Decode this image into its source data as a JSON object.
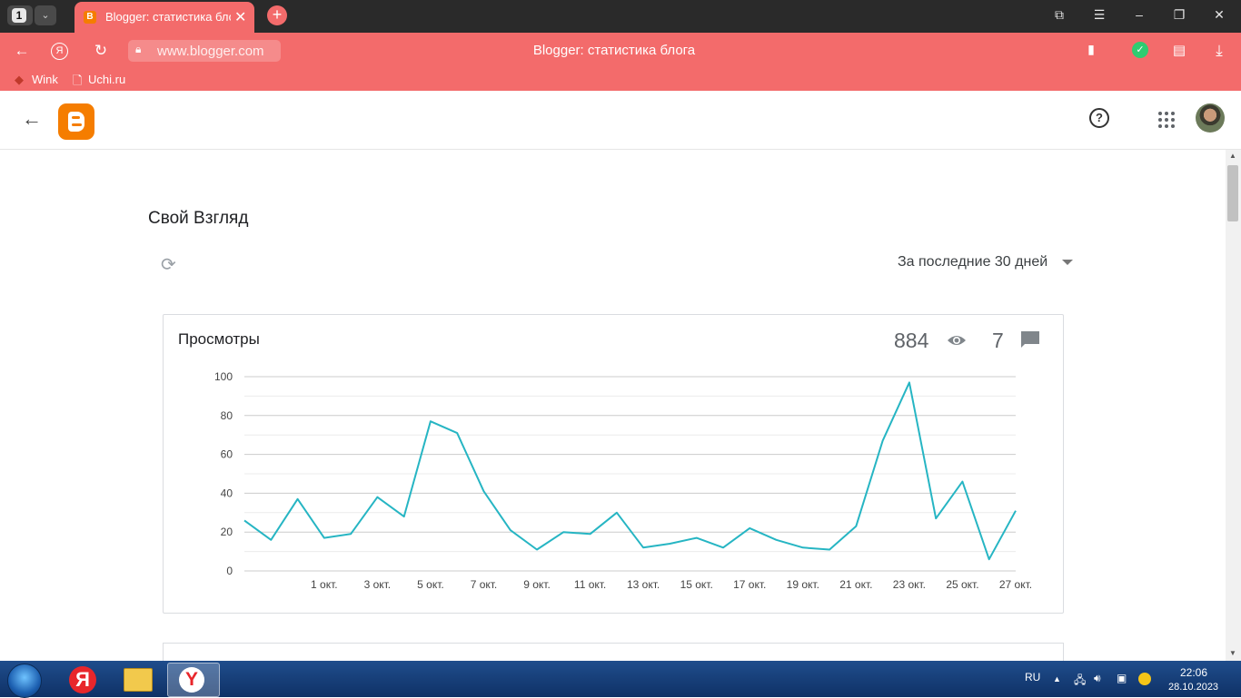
{
  "browser": {
    "tab_count": "1",
    "tab_title": "Blogger: статистика блога",
    "url": "www.blogger.com",
    "page_title": "Blogger: статистика блога",
    "bookmarks": [
      {
        "label": "Wink"
      },
      {
        "label": "Uchi.ru"
      }
    ],
    "accent_color": "#f36b6b"
  },
  "blog": {
    "name": "Свой Взгляд",
    "range_label": "За последние 30 дней"
  },
  "stats_card": {
    "title": "Просмотры",
    "views": "884",
    "comments": "7"
  },
  "chart_data": {
    "type": "line",
    "title": "Просмотры",
    "ylim": [
      0,
      100
    ],
    "y_ticks": [
      "0",
      "20",
      "40",
      "60",
      "80",
      "100"
    ],
    "x_tick_labels": [
      "1 окт.",
      "3 окт.",
      "5 окт.",
      "7 окт.",
      "9 окт.",
      "11 окт.",
      "13 окт.",
      "15 окт.",
      "17 окт.",
      "19 окт.",
      "21 окт.",
      "23 окт.",
      "25 окт.",
      "27 окт."
    ],
    "series": [
      {
        "color": "#26b5c3",
        "values": [
          26,
          16,
          37,
          17,
          19,
          38,
          28,
          77,
          71,
          41,
          21,
          11,
          20,
          19,
          30,
          12,
          14,
          17,
          12,
          22,
          16,
          12,
          11,
          23,
          67,
          97,
          27,
          46,
          6,
          31
        ]
      }
    ],
    "grid": true
  },
  "taskbar": {
    "language": "RU",
    "time": "22:06",
    "date": "28.10.2023"
  }
}
